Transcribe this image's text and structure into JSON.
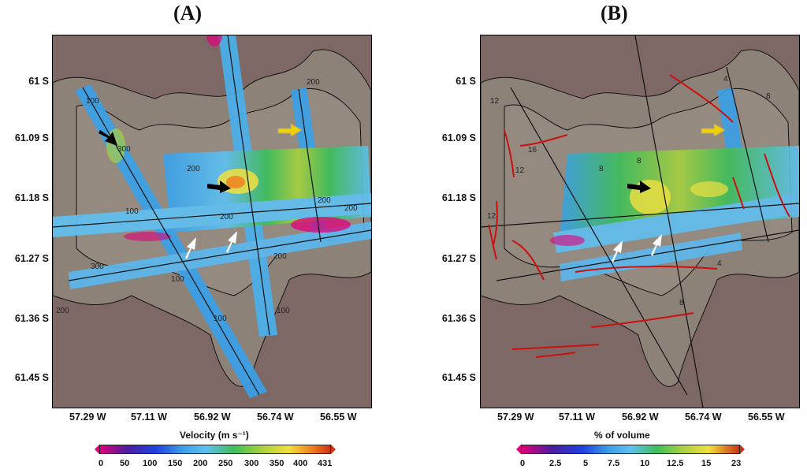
{
  "panels": [
    {
      "label": "(A)",
      "colorbar_title": "Velocity (m s⁻¹)",
      "colorbar_ticks": [
        "0",
        "50",
        "100",
        "150",
        "200",
        "250",
        "300",
        "350",
        "400",
        "431"
      ],
      "contour_labels": [
        "100",
        "200",
        "300",
        "200",
        "100",
        "200",
        "200",
        "300",
        "200",
        "100",
        "200",
        "100",
        "200",
        "100"
      ]
    },
    {
      "label": "(B)",
      "colorbar_title": "% of volume",
      "colorbar_ticks": [
        "0",
        "2.5",
        "5",
        "7.5",
        "10",
        "12.5",
        "15",
        "23"
      ],
      "contour_labels": [
        "12",
        "16",
        "8",
        "12",
        "8",
        "4",
        "8",
        "12",
        "4",
        "8"
      ]
    }
  ],
  "axes": {
    "y_ticks": [
      "61 S",
      "61.09 S",
      "61.18 S",
      "61.27 S",
      "61.36 S",
      "61.45 S"
    ],
    "x_ticks": [
      "57.29 W",
      "57.11 W",
      "56.92 W",
      "56.74 W",
      "56.55 W"
    ]
  },
  "colors": {
    "background": "#7d6866",
    "shelf": "#8d8277",
    "colormap": [
      "#e0007a",
      "#4a1ea0",
      "#2040e0",
      "#3aa0e8",
      "#60c0f0",
      "#3cbf5a",
      "#a8d040",
      "#f0e040",
      "#f08020",
      "#cc3311"
    ]
  },
  "chart_data": [
    {
      "type": "heatmap",
      "title": "(A)",
      "colorbar": {
        "label": "Velocity (m s⁻¹)",
        "min": 0,
        "max": 431,
        "ticks": [
          0,
          50,
          100,
          150,
          200,
          250,
          300,
          350,
          400,
          431
        ]
      },
      "x_ticks": [
        "57.29 W",
        "57.11 W",
        "56.92 W",
        "56.74 W",
        "56.55 W"
      ],
      "y_ticks": [
        "61 S",
        "61.09 S",
        "61.18 S",
        "61.27 S",
        "61.36 S",
        "61.45 S"
      ],
      "contour_levels": [
        100,
        200,
        300
      ],
      "annotations": [
        "black arrows",
        "white arrows",
        "yellow arrow",
        "survey track lines"
      ]
    },
    {
      "type": "heatmap",
      "title": "(B)",
      "colorbar": {
        "label": "% of volume",
        "min": 0,
        "max": 23,
        "ticks": [
          0,
          2.5,
          5,
          7.5,
          10,
          12.5,
          15,
          23
        ]
      },
      "x_ticks": [
        "57.29 W",
        "57.11 W",
        "56.92 W",
        "56.74 W",
        "56.55 W"
      ],
      "y_ticks": [
        "61 S",
        "61.09 S",
        "61.18 S",
        "61.27 S",
        "61.36 S",
        "61.45 S"
      ],
      "contour_levels": [
        4,
        8,
        12,
        16
      ],
      "annotations": [
        "black arrow",
        "white arrows",
        "yellow arrow",
        "red fault lines",
        "survey track lines"
      ]
    }
  ]
}
